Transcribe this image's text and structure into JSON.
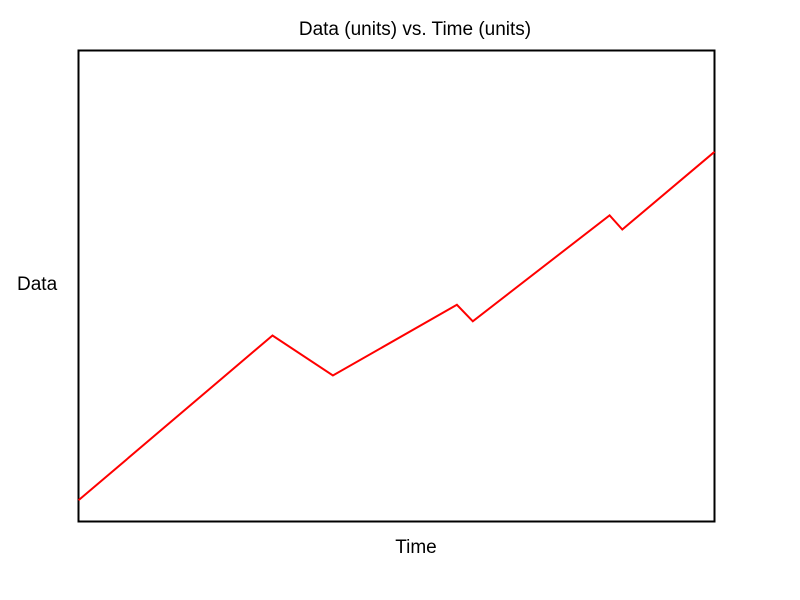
{
  "chart_data": {
    "type": "line",
    "title": "Data (units) vs. Time (units)",
    "xlabel": "Time",
    "ylabel": "Data",
    "xlim": [
      0,
      100
    ],
    "ylim": [
      0,
      100
    ],
    "grid": false,
    "legend": "none",
    "series": [
      {
        "color": "#ff0000",
        "x": [
          0,
          30.5,
          40,
          59.5,
          62,
          83.5,
          85.5,
          100
        ],
        "y": [
          4.5,
          39.5,
          31,
          46,
          42.5,
          65,
          62,
          78.5
        ]
      }
    ]
  }
}
